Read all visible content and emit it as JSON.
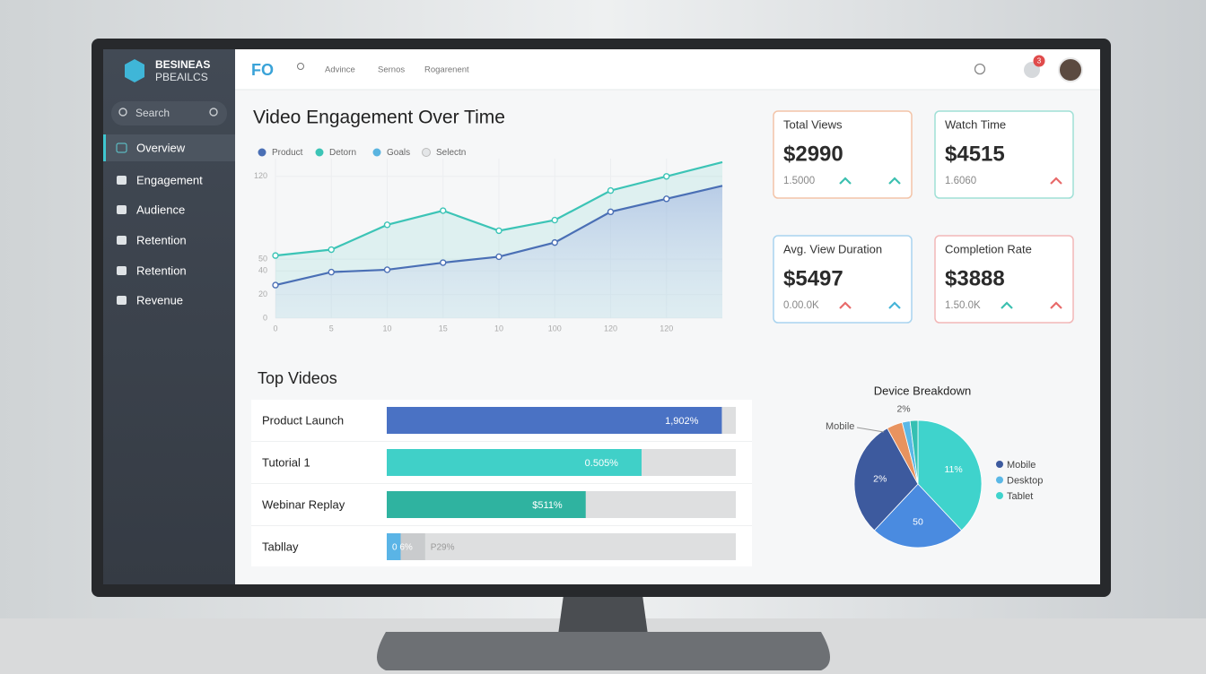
{
  "sidebar": {
    "brand": [
      "BESINEAS",
      "PBEAILCS"
    ],
    "search": "Search",
    "nav": [
      "Overview",
      "Engagement",
      "Audience",
      "Retention",
      "Retention",
      "Revenue"
    ]
  },
  "topbar": {
    "logo": "FO",
    "links": [
      "Advince",
      "Sernos",
      "Rogarenent"
    ],
    "badge": "3"
  },
  "cards": [
    {
      "title": "Total Views",
      "value": "$2990",
      "sub": "1.5000",
      "color": "#f3c4a8",
      "arrows": [
        "#3cc0b0",
        "#3cc0b0"
      ]
    },
    {
      "title": "Watch Time",
      "value": "$4515",
      "sub": "1.6060",
      "color": "#9fe0d6",
      "arrows": [
        "#e86a6a"
      ]
    },
    {
      "title": "Avg. View Duration",
      "value": "$5497",
      "sub": "0.00.0K",
      "color": "#a9d4ef",
      "arrows": [
        "#e86a6a",
        "#45b4d8"
      ]
    },
    {
      "title": "Completion Rate",
      "value": "$3888",
      "sub": "1.50.0K",
      "color": "#f2b7b7",
      "arrows": [
        "#3cc0b0",
        "#e86a6a"
      ]
    }
  ],
  "chart_data": [
    {
      "type": "line",
      "title": "Video Engagement Over Time",
      "categories": [
        "0",
        "5",
        "10",
        "15",
        "10",
        "100",
        "120",
        "120",
        null
      ],
      "series": [
        {
          "name": "Product",
          "color": "#4a6fb5",
          "values": [
            28,
            39,
            41,
            47,
            52,
            64,
            90,
            101,
            112
          ]
        },
        {
          "name": "Detorn",
          "color": "#3cc4b6",
          "values": [
            53,
            58,
            79,
            91,
            74,
            83,
            108,
            120,
            132
          ]
        },
        {
          "name": "Goals",
          "color": "#5ab4e0",
          "values": [
            null,
            null,
            null,
            null,
            null,
            null,
            null,
            null,
            null
          ]
        },
        {
          "name": "Selectn",
          "color": "#e4e6e8",
          "values": [
            null,
            null,
            null,
            null,
            null,
            null,
            null,
            null,
            null
          ]
        }
      ],
      "ylim": [
        0,
        135
      ],
      "yticks": [
        0,
        20,
        40,
        50,
        120
      ],
      "grid": true
    },
    {
      "type": "bar",
      "orientation": "horizontal",
      "title": "Top Videos",
      "categories": [
        "Product Launch",
        "Tutorial 1",
        "Webinar Replay",
        "Tabllay"
      ],
      "values": [
        96,
        73,
        57,
        4
      ],
      "value_labels": [
        "1,902%",
        "0.505%",
        "$511%",
        "0 6%"
      ],
      "colors": [
        "#4a72c4",
        "#40d0c8",
        "#2fb3a0",
        "#5ab4e6"
      ],
      "secondary_values": [
        null,
        null,
        null,
        7
      ],
      "secondary_value_labels": [
        null,
        null,
        null,
        "P29%"
      ],
      "secondary_color": "#c9cbcd",
      "track_color": "#dedfe0",
      "xlim": [
        0,
        100
      ]
    },
    {
      "type": "pie",
      "title": "Device Breakdown",
      "values": [
        38,
        24,
        30,
        4,
        2,
        2
      ],
      "value_labels": [
        "11%",
        "50",
        "2%",
        null,
        "2%",
        null
      ],
      "colors": [
        "#3fd3cc",
        "#4a8be0",
        "#3d5a9e",
        "#e8935f",
        "#5ab8e6",
        "#35c0b2"
      ],
      "legend": [
        {
          "name": "Mobile",
          "color": "#3d5a9e"
        },
        {
          "name": "Desktop",
          "color": "#5ab8e6"
        },
        {
          "name": "Tablet",
          "color": "#3fd3cc"
        }
      ],
      "annotation": "Mobile"
    }
  ]
}
